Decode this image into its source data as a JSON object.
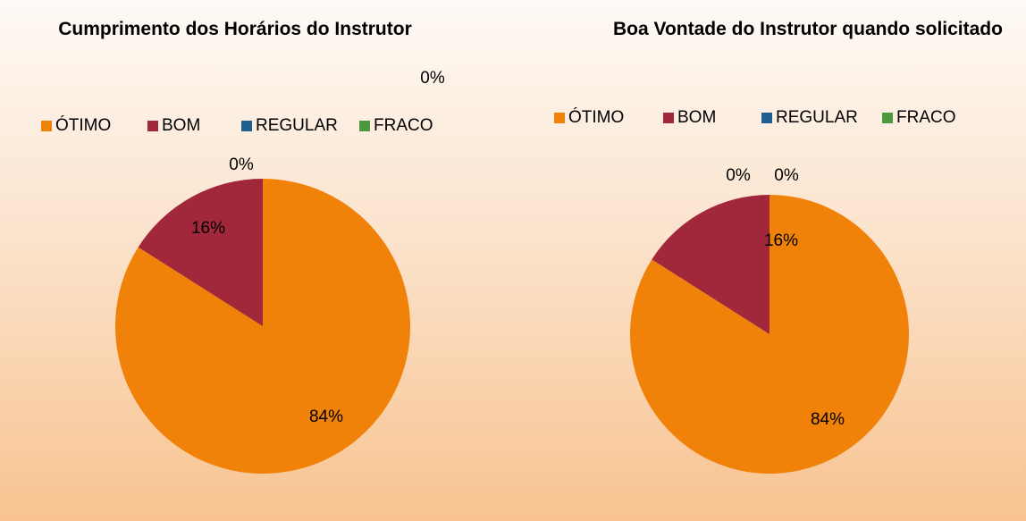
{
  "chart_data": [
    {
      "type": "pie",
      "title": "Cumprimento dos Horários do Instrutor",
      "categories": [
        "ÓTIMO",
        "BOM",
        "REGULAR",
        "FRACO"
      ],
      "values": [
        84,
        16,
        0,
        0
      ],
      "value_labels": [
        "84%",
        "16%",
        "0%",
        "0%"
      ],
      "colors": [
        "#f0820a",
        "#a0283a",
        "#1f5f8f",
        "#4c9a3c"
      ],
      "legend": "top"
    },
    {
      "type": "pie",
      "title": "Boa Vontade do Instrutor quando solicitado",
      "categories": [
        "ÓTIMO",
        "BOM",
        "REGULAR",
        "FRACO"
      ],
      "values": [
        84,
        16,
        0,
        0
      ],
      "value_labels": [
        "84%",
        "16%",
        "0%",
        "0%"
      ],
      "colors": [
        "#f0820a",
        "#a0283a",
        "#1f5f8f",
        "#4c9a3c"
      ],
      "legend": "top"
    }
  ]
}
